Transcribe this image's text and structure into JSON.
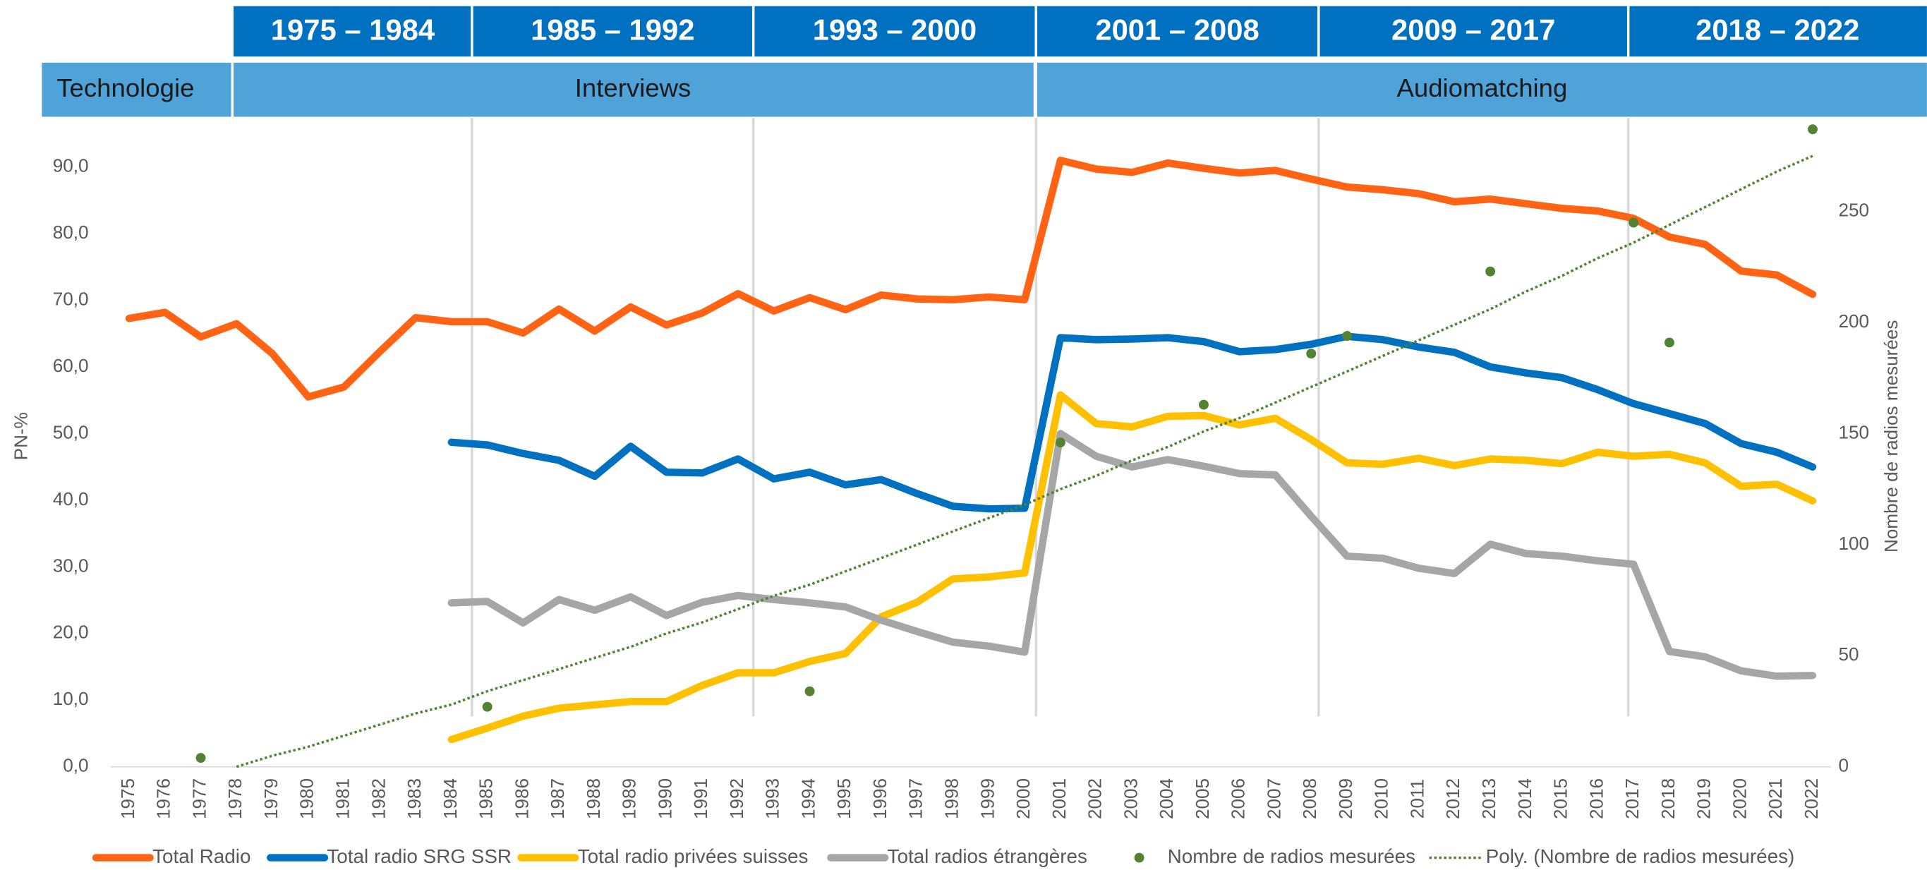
{
  "header": {
    "periods": [
      "1975 – 1984",
      "1985 – 1992",
      "1993 – 2000",
      "2001 – 2008",
      "2009 – 2017",
      "2018 – 2022"
    ],
    "technology_label": "Technologie",
    "technologies": [
      "Interviews",
      "Audiomatching"
    ]
  },
  "chart_data": {
    "type": "line",
    "ylabel": "PN-%",
    "y2label": "Nombre de radios mesurées",
    "categories": [
      "1975",
      "1976",
      "1977",
      "1978",
      "1979",
      "1980",
      "1981",
      "1982",
      "1983",
      "1984",
      "1985",
      "1986",
      "1987",
      "1988",
      "1989",
      "1990",
      "1991",
      "1992",
      "1993",
      "1994",
      "1995",
      "1996",
      "1997",
      "1998",
      "1999",
      "2000",
      "2001",
      "2002",
      "2003",
      "2004",
      "2005",
      "2006",
      "2007",
      "2008",
      "2009",
      "2010",
      "2011",
      "2012",
      "2013",
      "2014",
      "2015",
      "2016",
      "2017",
      "2018",
      "2019",
      "2020",
      "2021",
      "2022"
    ],
    "ylim": [
      0,
      97
    ],
    "yticks": [
      {
        "value": 0,
        "label": "0,0"
      },
      {
        "value": 10,
        "label": "10,0"
      },
      {
        "value": 20,
        "label": "20,0"
      },
      {
        "value": 30,
        "label": "30,0"
      },
      {
        "value": 40,
        "label": "40,0"
      },
      {
        "value": 50,
        "label": "50,0"
      },
      {
        "value": 60,
        "label": "60,0"
      },
      {
        "value": 70,
        "label": "70,0"
      },
      {
        "value": 80,
        "label": "80,0"
      },
      {
        "value": 90,
        "label": "90,0"
      }
    ],
    "y2lim": [
      0,
      291
    ],
    "y2ticks": [
      0,
      50,
      100,
      150,
      200,
      250
    ],
    "legend": "bottom",
    "series": [
      {
        "name": "Total Radio",
        "color": "#ff6313",
        "values": [
          67.3,
          68.2,
          64.5,
          66.5,
          62,
          55.5,
          57,
          62.3,
          67.4,
          66.8,
          66.8,
          65.1,
          68.7,
          65.4,
          69,
          66.3,
          68.1,
          71,
          68.4,
          70.4,
          68.6,
          70.8,
          70.2,
          70.1,
          70.5,
          70.1,
          91,
          89.7,
          89.2,
          90.6,
          89.8,
          89.1,
          89.5,
          88.2,
          87,
          86.6,
          86,
          84.8,
          85.2,
          84.5,
          83.8,
          83.4,
          82.3,
          79.5,
          78.4,
          74.4,
          73.8,
          70.9
        ]
      },
      {
        "name": "Total radio SRG SSR",
        "color": "#0070c0",
        "values": [
          null,
          null,
          null,
          null,
          null,
          null,
          null,
          null,
          null,
          48.7,
          48.3,
          47,
          46,
          43.6,
          48.1,
          44.2,
          44.1,
          46.2,
          43.2,
          44.2,
          42.3,
          43.1,
          41,
          39.1,
          38.7,
          38.8,
          64.4,
          64.1,
          64.2,
          64.4,
          63.8,
          62.3,
          62.6,
          63.4,
          64.6,
          64.1,
          63,
          62.2,
          60,
          59.1,
          58.4,
          56.6,
          54.5,
          53,
          51.5,
          48.5,
          47.2,
          45
        ]
      },
      {
        "name": "Total radio privées suisses",
        "color": "#ffc000",
        "values": [
          null,
          null,
          null,
          null,
          null,
          null,
          null,
          null,
          null,
          4.1,
          5.8,
          7.6,
          8.8,
          9.3,
          9.8,
          9.8,
          12.2,
          14.1,
          14.1,
          15.8,
          17,
          22.5,
          24.7,
          28.2,
          28.5,
          29.1,
          55.8,
          51.5,
          51,
          52.6,
          52.7,
          51.3,
          52.3,
          49.1,
          45.6,
          45.4,
          46.3,
          45.2,
          46.2,
          46,
          45.5,
          47.2,
          46.6,
          46.9,
          45.6,
          42.1,
          42.4,
          39.9
        ]
      },
      {
        "name": "Total radios étrangères",
        "color": "#a6a6a6",
        "values": [
          null,
          null,
          null,
          null,
          null,
          null,
          null,
          null,
          null,
          24.6,
          24.8,
          21.6,
          25.1,
          23.5,
          25.5,
          22.7,
          24.7,
          25.7,
          25.1,
          24.6,
          24,
          22,
          20.3,
          18.7,
          18.1,
          17.2,
          50,
          46.6,
          45,
          46.1,
          45.1,
          44,
          43.8,
          37.6,
          31.6,
          31.3,
          29.8,
          29,
          33.4,
          32,
          31.6,
          30.9,
          30.4,
          17.3,
          16.5,
          14.4,
          13.6,
          13.7
        ]
      },
      {
        "name": "Nombre de radios mesurées",
        "color": "#548235",
        "type": "scatter",
        "axis": "y2",
        "values": [
          null,
          null,
          4,
          null,
          null,
          null,
          null,
          null,
          null,
          null,
          27,
          null,
          null,
          null,
          null,
          null,
          null,
          null,
          null,
          34,
          null,
          null,
          null,
          null,
          null,
          null,
          146,
          null,
          null,
          null,
          163,
          null,
          null,
          186,
          194,
          null,
          null,
          null,
          223,
          null,
          null,
          null,
          245,
          191,
          null,
          null,
          null,
          287
        ]
      },
      {
        "name": "Poly. (Nombre de radios mesurées)",
        "color": "#548235",
        "style": "dotted",
        "axis": "y2",
        "values": [
          null,
          null,
          null,
          0,
          5,
          9,
          14,
          19,
          24,
          28,
          34,
          39,
          44,
          49,
          54,
          60,
          65,
          71,
          77,
          82,
          88,
          94,
          100,
          106,
          112,
          118,
          125,
          131,
          138,
          144,
          151,
          157,
          164,
          171,
          178,
          185,
          192,
          199,
          206,
          214,
          221,
          229,
          236,
          244,
          252,
          260,
          268,
          275
        ]
      }
    ]
  }
}
